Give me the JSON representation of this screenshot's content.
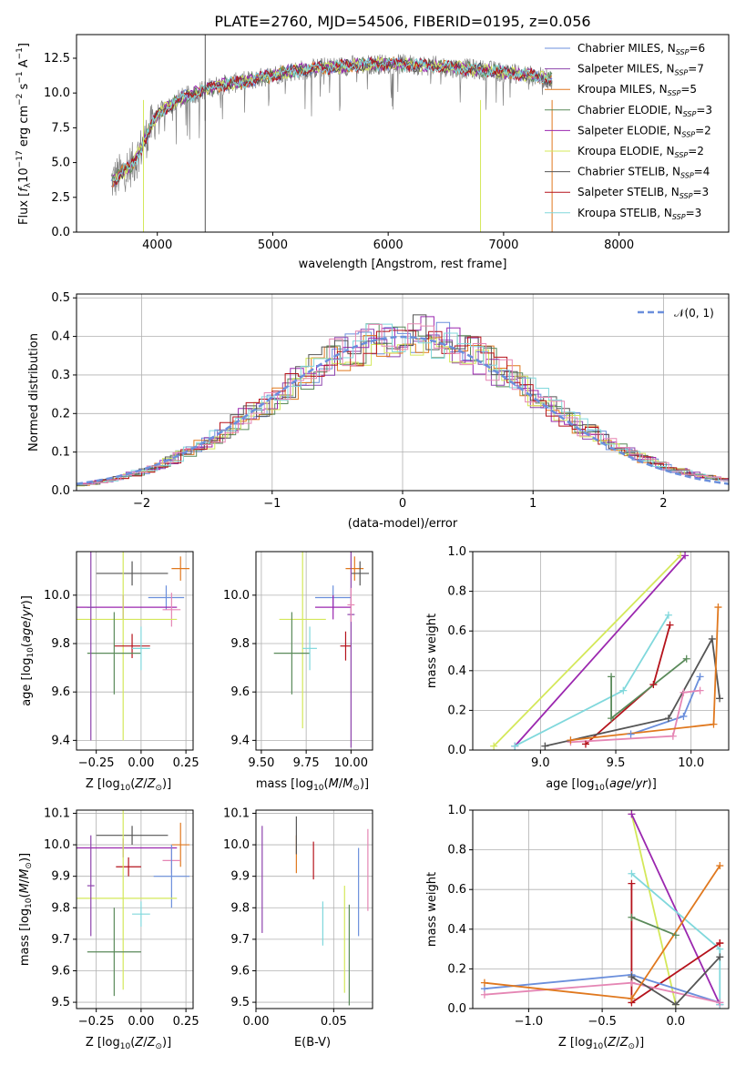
{
  "title": "PLATE=2760, MJD=54506, FIBERID=0195, z=0.056",
  "colors": {
    "Chabrier MILES": "#6b8fdc",
    "Salpeter MILES": "#8e44ad",
    "Kroupa MILES": "#e0781e",
    "Chabrier ELODIE": "#5a8a5a",
    "Salpeter ELODIE": "#9b27af",
    "Kroupa ELODIE": "#d4e85a",
    "Chabrier STELIB": "#555555",
    "Salpeter STELIB": "#b5121b",
    "Kroupa STELIB": "#80d8dc",
    "pink": "#e586b4",
    "data": "#808080"
  },
  "spectrum": {
    "xlabel": "wavelength [Angstrom, rest frame]",
    "ylabel": "Flux [f$_\\lambda$ 10$^{-17}$ erg cm$^{-2}$ s$^{-1}$ A$^{-1}$]",
    "xticks": [
      "4000",
      "5000",
      "6000",
      "7000",
      "8000"
    ],
    "yticks": [
      "0.0",
      "2.5",
      "5.0",
      "7.5",
      "10.0",
      "12.5"
    ],
    "legend": [
      {
        "name": "Chabrier MILES, N_SSP=6",
        "base": "Chabrier MILES, N",
        "sub": "SSP",
        "tail": "=6"
      },
      {
        "name": "Salpeter MILES, N_SSP=7",
        "base": "Salpeter MILES, N",
        "sub": "SSP",
        "tail": "=7"
      },
      {
        "name": "Kroupa MILES, N_SSP=5",
        "base": "Kroupa MILES, N",
        "sub": "SSP",
        "tail": "=5"
      },
      {
        "name": "Chabrier ELODIE, N_SSP=3",
        "base": "Chabrier ELODIE, N",
        "sub": "SSP",
        "tail": "=3"
      },
      {
        "name": "Salpeter ELODIE, N_SSP=2",
        "base": "Salpeter ELODIE, N",
        "sub": "SSP",
        "tail": "=2"
      },
      {
        "name": "Kroupa ELODIE, N_SSP=2",
        "base": "Kroupa ELODIE, N",
        "sub": "SSP",
        "tail": "=2"
      },
      {
        "name": "Chabrier STELIB, N_SSP=4",
        "base": "Chabrier STELIB, N",
        "sub": "SSP",
        "tail": "=4"
      },
      {
        "name": "Salpeter STELIB, N_SSP=3",
        "base": "Salpeter STELIB, N",
        "sub": "SSP",
        "tail": "=3"
      },
      {
        "name": "Kroupa STELIB, N_SSP=3",
        "base": "Kroupa STELIB, N",
        "sub": "SSP",
        "tail": "=3"
      }
    ]
  },
  "residuals": {
    "xlabel": "(data-model)/error",
    "ylabel": "Normed distribution",
    "xticks": [
      "−2",
      "−1",
      "0",
      "1",
      "2"
    ],
    "yticks": [
      "0.0",
      "0.1",
      "0.2",
      "0.3",
      "0.4",
      "0.5"
    ],
    "legend_label": "𝒩(0, 1)"
  },
  "panels": {
    "age_label": "age  [log₁₀(age/yr)]",
    "Z_label": "Z [log₁₀(Z/Z⊙)]",
    "mass_label": "mass [log₁₀(M/M⊙)]",
    "ebv_label": "E(B-V)",
    "mw_label": "mass weight"
  },
  "chart_data": [
    {
      "type": "line",
      "title": "PLATE=2760, MJD=54506, FIBERID=0195, z=0.056",
      "xlabel": "wavelength [Angstrom, rest frame]",
      "xlim": [
        3300,
        8950
      ],
      "ylim": [
        0,
        14.2
      ],
      "continuum_x": [
        3600,
        3800,
        4000,
        4200,
        4500,
        4800,
        5100,
        5400,
        5700,
        6000,
        6300,
        6600,
        6900,
        7200,
        7400
      ],
      "continuum_y": [
        3.6,
        5.0,
        8.5,
        9.6,
        10.5,
        10.9,
        11.5,
        11.8,
        12.0,
        12.1,
        12.0,
        11.8,
        11.6,
        11.3,
        11.0
      ],
      "series": [
        "Chabrier MILES",
        "Salpeter MILES",
        "Kroupa MILES",
        "Chabrier ELODIE",
        "Salpeter ELODIE",
        "Kroupa ELODIE",
        "Chabrier STELIB",
        "Salpeter STELIB",
        "Kroupa STELIB"
      ]
    },
    {
      "type": "line",
      "xlabel": "(data-model)/error",
      "ylabel": "Normed distribution",
      "xlim": [
        -2.5,
        2.5
      ],
      "ylim": [
        0,
        0.51
      ],
      "gaussian": {
        "mean": 0,
        "sigma": 1
      }
    },
    {
      "type": "scatter",
      "panel": "Z-age",
      "xlim": [
        -0.36,
        0.29
      ],
      "ylim": [
        9.36,
        10.18
      ],
      "xticks": [
        -0.25,
        0,
        0.25
      ],
      "yticks": [
        9.4,
        9.6,
        9.8,
        10.0
      ],
      "points": [
        {
          "c": "Chabrier MILES",
          "x": 0.14,
          "y": 9.99,
          "xe": 0.1,
          "ye": 0.05
        },
        {
          "c": "Kroupa MILES",
          "x": 0.22,
          "y": 10.11,
          "xe": 0.05,
          "ye": 0.05
        },
        {
          "c": "Chabrier STELIB",
          "x": -0.05,
          "y": 10.09,
          "xe": 0.2,
          "ye": 0.05
        },
        {
          "c": "Salpeter ELODIE",
          "x": -0.1,
          "y": 9.95,
          "xe": 0.3,
          "ye": 0.05
        },
        {
          "c": "pink",
          "x": 0.17,
          "y": 9.94,
          "xe": 0.05,
          "ye": 0.07
        },
        {
          "c": "Kroupa ELODIE",
          "x": -0.1,
          "y": 9.9,
          "xe": 0.3,
          "ye": 0.5
        },
        {
          "c": "Salpeter STELIB",
          "x": -0.05,
          "y": 9.79,
          "xe": 0.1,
          "ye": 0.05
        },
        {
          "c": "Chabrier ELODIE",
          "x": -0.15,
          "y": 9.76,
          "xe": 0.15,
          "ye": 0.17
        },
        {
          "c": "Kroupa STELIB",
          "x": 0.0,
          "y": 9.78,
          "xe": 0.05,
          "ye": 0.09
        },
        {
          "c": "Salpeter MILES",
          "x": -0.28,
          "y": 9.95,
          "xe": 0.02,
          "ye": 0.55
        }
      ]
    },
    {
      "type": "scatter",
      "panel": "mass-age",
      "xlim": [
        9.47,
        10.12
      ],
      "ylim": [
        9.36,
        10.18
      ],
      "xticks": [
        9.5,
        9.75,
        10.0
      ],
      "yticks": [
        9.4,
        9.6,
        9.8,
        10.0
      ],
      "points": [
        {
          "c": "Chabrier MILES",
          "x": 9.9,
          "y": 9.99,
          "xe": 0.1,
          "ye": 0.05
        },
        {
          "c": "Kroupa MILES",
          "x": 10.02,
          "y": 10.11,
          "xe": 0.05,
          "ye": 0.05
        },
        {
          "c": "Chabrier STELIB",
          "x": 10.05,
          "y": 10.09,
          "xe": 0.05,
          "ye": 0.05
        },
        {
          "c": "Salpeter ELODIE",
          "x": 9.9,
          "y": 9.95,
          "xe": 0.1,
          "ye": 0.05
        },
        {
          "c": "Kroupa ELODIE",
          "x": 9.73,
          "y": 9.9,
          "xe": 0.13,
          "ye": 0.45
        },
        {
          "c": "Salpeter STELIB",
          "x": 9.97,
          "y": 9.79,
          "xe": 0.03,
          "ye": 0.06
        },
        {
          "c": "Chabrier ELODIE",
          "x": 9.67,
          "y": 9.76,
          "xe": 0.1,
          "ye": 0.17
        },
        {
          "c": "Kroupa STELIB",
          "x": 9.77,
          "y": 9.78,
          "xe": 0.04,
          "ye": 0.09
        },
        {
          "c": "Salpeter MILES",
          "x": 10.0,
          "y": 9.92,
          "xe": 0.02,
          "ye": 0.55
        },
        {
          "c": "pink",
          "x": 10.0,
          "y": 9.96,
          "xe": 0.02,
          "ye": 0.07
        }
      ]
    },
    {
      "type": "line",
      "panel": "age-massweight",
      "xlim": [
        8.55,
        10.25
      ],
      "ylim": [
        0,
        1
      ],
      "xticks": [
        9.0,
        9.5,
        10.0
      ],
      "yticks": [
        0,
        0.2,
        0.4,
        0.6,
        0.8,
        1.0
      ],
      "series": [
        {
          "c": "Kroupa ELODIE",
          "x": [
            8.69,
            9.93
          ],
          "y": [
            0.02,
            0.98
          ]
        },
        {
          "c": "Salpeter ELODIE",
          "x": [
            8.83,
            9.96
          ],
          "y": [
            0.02,
            0.98
          ]
        },
        {
          "c": "Kroupa STELIB",
          "x": [
            8.83,
            9.55,
            9.85
          ],
          "y": [
            0.02,
            0.3,
            0.68
          ]
        },
        {
          "c": "Salpeter STELIB",
          "x": [
            9.3,
            9.75,
            9.86
          ],
          "y": [
            0.03,
            0.33,
            0.63
          ]
        },
        {
          "c": "Chabrier ELODIE",
          "x": [
            9.47,
            9.47,
            9.97
          ],
          "y": [
            0.37,
            0.16,
            0.46
          ]
        },
        {
          "c": "Chabrier STELIB",
          "x": [
            9.03,
            9.85,
            10.14,
            10.19
          ],
          "y": [
            0.02,
            0.16,
            0.56,
            0.26
          ]
        },
        {
          "c": "Chabrier MILES",
          "x": [
            9.6,
            9.95,
            10.06
          ],
          "y": [
            0.08,
            0.17,
            0.37
          ]
        },
        {
          "c": "pink",
          "x": [
            9.2,
            9.88,
            9.95,
            10.06
          ],
          "y": [
            0.04,
            0.07,
            0.29,
            0.3
          ]
        },
        {
          "c": "Kroupa MILES",
          "x": [
            9.2,
            10.15,
            10.18
          ],
          "y": [
            0.05,
            0.13,
            0.72
          ]
        }
      ]
    },
    {
      "type": "scatter",
      "panel": "Z-mass",
      "xlim": [
        -0.36,
        0.29
      ],
      "ylim": [
        9.48,
        10.11
      ],
      "xticks": [
        -0.25,
        0,
        0.25
      ],
      "yticks": [
        9.5,
        9.6,
        9.7,
        9.8,
        9.9,
        10.0,
        10.1
      ],
      "points": [
        {
          "c": "Chabrier STELIB",
          "x": -0.05,
          "y": 10.03,
          "xe": 0.2,
          "ye": 0.03
        },
        {
          "c": "Salpeter ELODIE",
          "x": -0.1,
          "y": 9.99,
          "xe": 0.3,
          "ye": 0.03
        },
        {
          "c": "Kroupa MILES",
          "x": 0.22,
          "y": 10.0,
          "xe": 0.05,
          "ye": 0.07
        },
        {
          "c": "pink",
          "x": 0.17,
          "y": 9.95,
          "xe": 0.05,
          "ye": 0.04
        },
        {
          "c": "Salpeter STELIB",
          "x": -0.07,
          "y": 9.93,
          "xe": 0.07,
          "ye": 0.03
        },
        {
          "c": "Chabrier MILES",
          "x": 0.17,
          "y": 9.9,
          "xe": 0.1,
          "ye": 0.1
        },
        {
          "c": "Kroupa ELODIE",
          "x": -0.1,
          "y": 9.83,
          "xe": 0.3,
          "ye": 0.29
        },
        {
          "c": "Kroupa STELIB",
          "x": 0.0,
          "y": 9.78,
          "xe": 0.05,
          "ye": 0.04
        },
        {
          "c": "Chabrier ELODIE",
          "x": -0.15,
          "y": 9.66,
          "xe": 0.15,
          "ye": 0.14
        },
        {
          "c": "Salpeter MILES",
          "x": -0.28,
          "y": 9.87,
          "xe": 0.02,
          "ye": 0.16
        }
      ]
    },
    {
      "type": "scatter",
      "panel": "EBV-mass",
      "xlim": [
        0,
        0.075
      ],
      "ylim": [
        9.48,
        10.11
      ],
      "xticks": [
        0.0,
        0.05
      ],
      "yticks": [
        9.5,
        9.6,
        9.7,
        9.8,
        9.9,
        10.0,
        10.1
      ],
      "points": [
        {
          "c": "Salpeter MILES",
          "x": 0.004,
          "y": 9.89,
          "ye": 0.17
        },
        {
          "c": "Kroupa MILES",
          "x": 0.026,
          "y": 9.97,
          "ye": 0.06
        },
        {
          "c": "Chabrier STELIB",
          "x": 0.026,
          "y": 10.03,
          "ye": 0.06
        },
        {
          "c": "Salpeter STELIB",
          "x": 0.037,
          "y": 9.95,
          "ye": 0.06
        },
        {
          "c": "Kroupa STELIB",
          "x": 0.043,
          "y": 9.75,
          "ye": 0.07
        },
        {
          "c": "Kroupa ELODIE",
          "x": 0.057,
          "y": 9.7,
          "ye": 0.17
        },
        {
          "c": "Chabrier ELODIE",
          "x": 0.06,
          "y": 9.65,
          "ye": 0.16
        },
        {
          "c": "Chabrier MILES",
          "x": 0.066,
          "y": 9.85,
          "ye": 0.14
        },
        {
          "c": "pink",
          "x": 0.072,
          "y": 9.92,
          "ye": 0.13
        }
      ]
    },
    {
      "type": "line",
      "panel": "Z-massweight",
      "xlim": [
        -1.38,
        0.36
      ],
      "ylim": [
        0,
        1
      ],
      "xticks": [
        -1.0,
        -0.5,
        0.0
      ],
      "yticks": [
        0,
        0.2,
        0.4,
        0.6,
        0.8,
        1.0
      ],
      "series": [
        {
          "c": "Kroupa ELODIE",
          "x": [
            -0.3,
            0.0
          ],
          "y": [
            0.98,
            0.02
          ]
        },
        {
          "c": "Salpeter ELODIE",
          "x": [
            -0.3,
            0.3
          ],
          "y": [
            0.98,
            0.02
          ]
        },
        {
          "c": "Kroupa STELIB",
          "x": [
            -0.3,
            0.3,
            0.3
          ],
          "y": [
            0.68,
            0.3,
            0.02
          ]
        },
        {
          "c": "Chabrier ELODIE",
          "x": [
            -0.3,
            0.0
          ],
          "y": [
            0.46,
            0.37
          ]
        },
        {
          "c": "Salpeter STELIB",
          "x": [
            -0.3,
            -0.3,
            0.3,
            0.3
          ],
          "y": [
            0.63,
            0.03,
            0.33,
            0.33
          ]
        },
        {
          "c": "Chabrier MILES",
          "x": [
            -1.3,
            -0.3,
            0.3
          ],
          "y": [
            0.1,
            0.17,
            0.03
          ]
        },
        {
          "c": "pink",
          "x": [
            -1.3,
            -0.3,
            0.3
          ],
          "y": [
            0.07,
            0.13,
            0.03
          ]
        },
        {
          "c": "Chabrier STELIB",
          "x": [
            -0.3,
            0.0,
            0.3
          ],
          "y": [
            0.16,
            0.02,
            0.26
          ]
        },
        {
          "c": "Kroupa MILES",
          "x": [
            -1.3,
            -0.3,
            0.3
          ],
          "y": [
            0.13,
            0.05,
            0.72
          ]
        }
      ]
    }
  ]
}
